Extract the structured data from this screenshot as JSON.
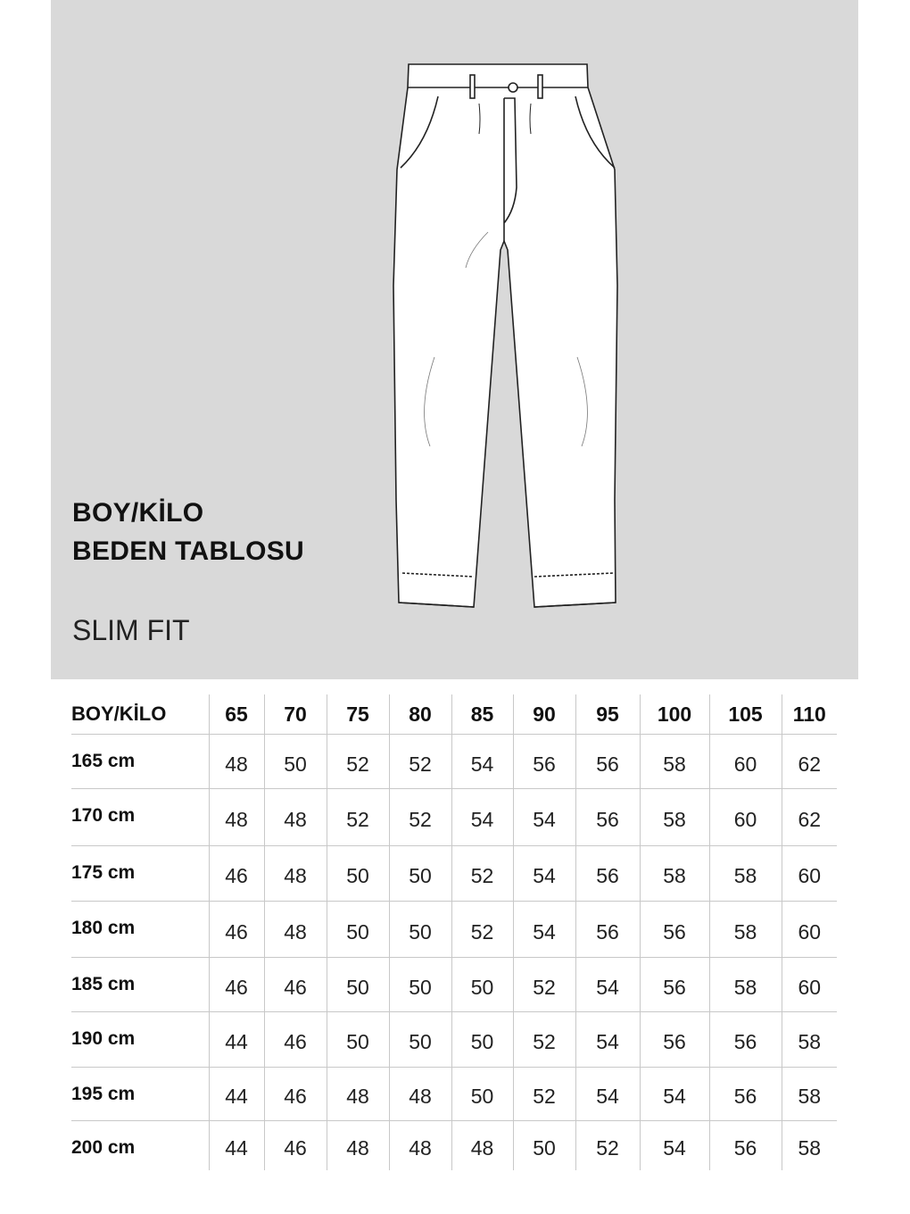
{
  "header": {
    "title_line1": "BOY/KİLO",
    "title_line2": "BEDEN TABLOSU",
    "fit": "SLIM FIT"
  },
  "table": {
    "corner_label": "BOY/KİLO",
    "weights": [
      "65",
      "70",
      "75",
      "80",
      "85",
      "90",
      "95",
      "100",
      "105",
      "110"
    ],
    "rows": [
      {
        "height": "165 cm",
        "sizes": [
          "48",
          "50",
          "52",
          "52",
          "54",
          "56",
          "56",
          "58",
          "60",
          "62"
        ]
      },
      {
        "height": "170 cm",
        "sizes": [
          "48",
          "48",
          "52",
          "52",
          "54",
          "54",
          "56",
          "58",
          "60",
          "62"
        ]
      },
      {
        "height": "175 cm",
        "sizes": [
          "46",
          "48",
          "50",
          "50",
          "52",
          "54",
          "56",
          "58",
          "58",
          "60"
        ]
      },
      {
        "height": "180 cm",
        "sizes": [
          "46",
          "48",
          "50",
          "50",
          "52",
          "54",
          "56",
          "56",
          "58",
          "60"
        ]
      },
      {
        "height": "185 cm",
        "sizes": [
          "46",
          "46",
          "50",
          "50",
          "50",
          "52",
          "54",
          "56",
          "58",
          "60"
        ]
      },
      {
        "height": "190 cm",
        "sizes": [
          "44",
          "46",
          "50",
          "50",
          "50",
          "52",
          "54",
          "56",
          "56",
          "58"
        ]
      },
      {
        "height": "195 cm",
        "sizes": [
          "44",
          "46",
          "48",
          "48",
          "50",
          "52",
          "54",
          "54",
          "56",
          "58"
        ]
      },
      {
        "height": "200 cm",
        "sizes": [
          "44",
          "46",
          "48",
          "48",
          "48",
          "50",
          "52",
          "54",
          "56",
          "58"
        ]
      }
    ]
  },
  "colors": {
    "panel": "#d9d9d9",
    "grid": "#c8c8c8"
  }
}
